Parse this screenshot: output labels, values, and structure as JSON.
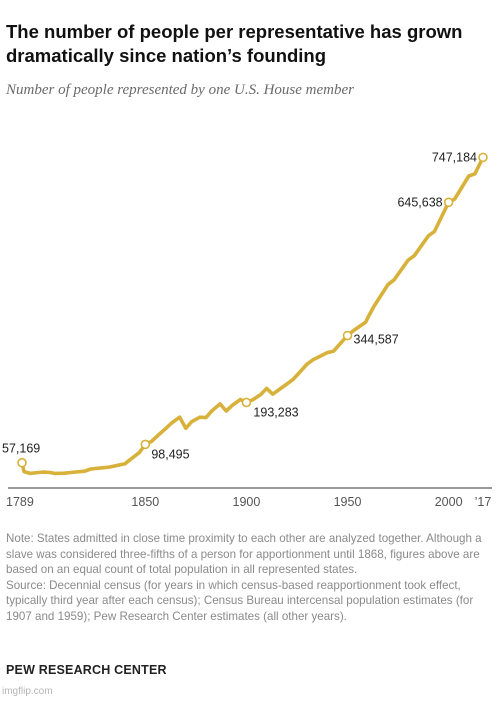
{
  "header": {
    "title": "The number of people per representative has grown dramatically since nation’s founding",
    "subtitle": "Number of people represented by one U.S. House member"
  },
  "chart_data": {
    "type": "line",
    "title": "The number of people per representative has grown dramatically since nation’s founding",
    "subtitle": "Number of people represented by one U.S. House member",
    "xlabel": "",
    "ylabel": "",
    "xlim": [
      1789,
      2017
    ],
    "ylim": [
      0,
      800000
    ],
    "x_ticks": [
      "1789",
      "1850",
      "1900",
      "1950",
      "2000",
      "’17"
    ],
    "grid": false,
    "legend": "none",
    "line_color": "#d8b13a",
    "series": [
      {
        "x": [
          1789,
          1790,
          1793,
          1797,
          1800,
          1803,
          1805,
          1810,
          1813,
          1820,
          1823,
          1830,
          1833,
          1840,
          1843,
          1847,
          1850,
          1853,
          1857,
          1860,
          1863,
          1867,
          1870,
          1873,
          1877,
          1880,
          1883,
          1887,
          1890,
          1893,
          1897,
          1900,
          1903,
          1907,
          1910,
          1913,
          1920,
          1923,
          1930,
          1933,
          1940,
          1943,
          1950,
          1953,
          1959,
          1960,
          1963,
          1970,
          1973,
          1980,
          1983,
          1990,
          1993,
          2000,
          2003,
          2010,
          2013,
          2017
        ],
        "y": [
          57169,
          37000,
          33000,
          35000,
          36000,
          35000,
          33000,
          33500,
          35000,
          38000,
          43000,
          46000,
          48000,
          55000,
          66000,
          80000,
          98495,
          105000,
          122000,
          134000,
          147000,
          160000,
          135000,
          150000,
          160000,
          159000,
          175000,
          190000,
          174000,
          187000,
          200000,
          193283,
          199000,
          211000,
          225000,
          212000,
          235000,
          245000,
          280000,
          290000,
          306000,
          309000,
          344587,
          356000,
          375000,
          385000,
          410000,
          460000,
          470000,
          515000,
          525000,
          570000,
          580000,
          645638,
          653000,
          705000,
          710000,
          747184
        ],
        "labeled_points": [
          {
            "x": 1789,
            "y": 57169,
            "label": "57,169"
          },
          {
            "x": 1850,
            "y": 98495,
            "label": "98,495"
          },
          {
            "x": 1900,
            "y": 193283,
            "label": "193,283"
          },
          {
            "x": 1950,
            "y": 344587,
            "label": "344,587"
          },
          {
            "x": 2000,
            "y": 645638,
            "label": "645,638"
          },
          {
            "x": 2017,
            "y": 747184,
            "label": "747,184"
          }
        ]
      }
    ]
  },
  "notes": {
    "note": "Note: States admitted in close time proximity to each other are analyzed together. Although a slave was considered three-fifths of a person for apportionment until 1868, figures above are based on an equal count of total population in all represented states.",
    "source": "Source: Decennial census (for years in which census-based reapportionment took effect, typically third year after each census); Census Bureau intercensal population estimates (for 1907 and 1959); Pew Research Center estimates (all other years)."
  },
  "branding": {
    "org": "PEW RESEARCH CENTER",
    "watermark": "imgflip.com"
  }
}
